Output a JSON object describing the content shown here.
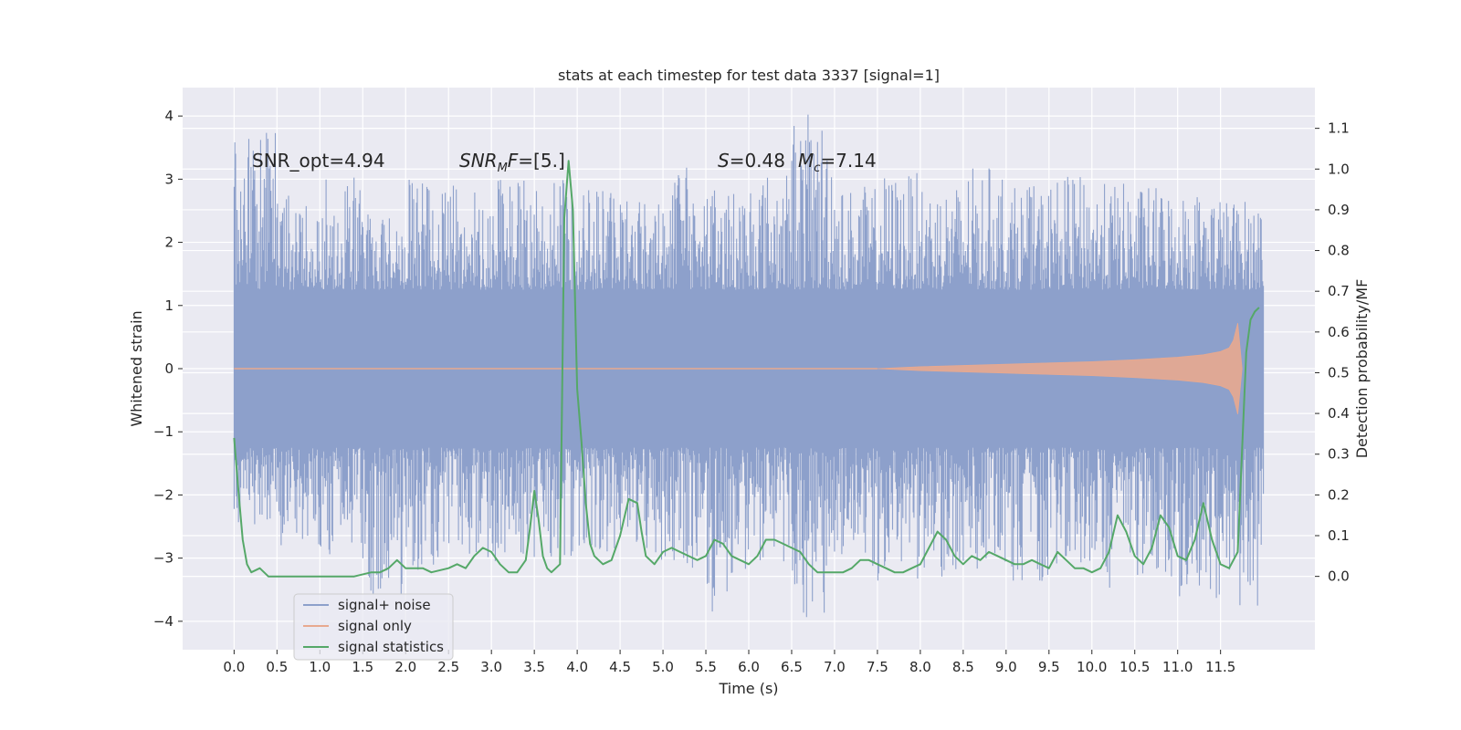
{
  "chart_data": {
    "type": "line",
    "title": "stats at each timestep for test data 3337 [signal=1]",
    "xlabel": "Time (s)",
    "ylabel": "Whitened strain",
    "ylabel_right": "Detection probability/MF",
    "xlim": [
      -0.6,
      12.6
    ],
    "ylim": [
      -4.45,
      4.45
    ],
    "ylim_right": [
      -0.18,
      1.2
    ],
    "x_ticks": [
      0.0,
      0.5,
      1.0,
      1.5,
      2.0,
      2.5,
      3.0,
      3.5,
      4.0,
      4.5,
      5.0,
      5.5,
      6.0,
      6.5,
      7.0,
      7.5,
      8.0,
      8.5,
      9.0,
      9.5,
      10.0,
      10.5,
      11.0,
      11.5
    ],
    "x_tick_labels": [
      "0.0",
      "0.5",
      "1.0",
      "1.5",
      "2.0",
      "2.5",
      "3.0",
      "3.5",
      "4.0",
      "4.5",
      "5.0",
      "5.5",
      "6.0",
      "6.5",
      "7.0",
      "7.5",
      "8.0",
      "8.5",
      "9.0",
      "9.5",
      "10.0",
      "10.5",
      "11.0",
      "11.5"
    ],
    "y_ticks": [
      4,
      3,
      2,
      1,
      0,
      -1,
      -2,
      -3,
      -4
    ],
    "y_tick_labels": [
      "4",
      "3",
      "2",
      "1",
      "0",
      "−1",
      "−2",
      "−3",
      "−4"
    ],
    "y_right_ticks": [
      1.1,
      1.0,
      0.9,
      0.8,
      0.7,
      0.6,
      0.5,
      0.4,
      0.3,
      0.2,
      0.1,
      0.0
    ],
    "y_right_tick_labels": [
      "1.1",
      "1.0",
      "0.9",
      "0.8",
      "0.7",
      "0.6",
      "0.5",
      "0.4",
      "0.3",
      "0.2",
      "0.1",
      "0.0"
    ],
    "grid": true,
    "legend_position": "lower-left",
    "series": [
      {
        "name": "signal+ noise",
        "color": "#8da0cb",
        "axis": "left",
        "t_range": [
          0.0,
          12.0
        ],
        "core_band": [
          -1.25,
          1.25
        ],
        "peaks_max": [
          3.75,
          2.8,
          3.1,
          2.5,
          3.0,
          2.9,
          3.05,
          3.0,
          2.95,
          2.8,
          3.2,
          2.9,
          3.15,
          4.05,
          2.9,
          3.1,
          2.95,
          3.2,
          2.9,
          3.05,
          2.95,
          2.9,
          2.85,
          2.7
        ],
        "peaks_min": [
          -2.5,
          -2.8,
          -2.95,
          -3.6,
          -3.25,
          -3.0,
          -3.1,
          -3.0,
          -2.9,
          -3.05,
          -3.4,
          -3.85,
          -3.1,
          -3.95,
          -3.2,
          -3.4,
          -3.3,
          -3.2,
          -3.4,
          -3.1,
          -3.5,
          -3.3,
          -3.75,
          -3.8
        ]
      },
      {
        "name": "signal only",
        "color": "#e8a98f",
        "axis": "left",
        "x": [
          7.5,
          8.0,
          8.5,
          9.0,
          9.5,
          10.0,
          10.5,
          11.0,
          11.3,
          11.5,
          11.6,
          11.65,
          11.7,
          11.75
        ],
        "envelope": [
          0.0,
          0.03,
          0.05,
          0.07,
          0.09,
          0.11,
          0.14,
          0.18,
          0.22,
          0.27,
          0.33,
          0.45,
          0.72,
          0.0
        ]
      },
      {
        "name": "signal statistics",
        "color": "#55a868",
        "axis": "right",
        "x": [
          0.0,
          0.05,
          0.1,
          0.15,
          0.2,
          0.3,
          0.4,
          0.5,
          0.7,
          1.0,
          1.2,
          1.4,
          1.6,
          1.7,
          1.8,
          1.9,
          2.0,
          2.2,
          2.3,
          2.5,
          2.6,
          2.7,
          2.8,
          2.9,
          3.0,
          3.1,
          3.2,
          3.3,
          3.4,
          3.45,
          3.5,
          3.55,
          3.6,
          3.65,
          3.7,
          3.8,
          3.85,
          3.9,
          3.95,
          4.0,
          4.05,
          4.1,
          4.15,
          4.2,
          4.3,
          4.4,
          4.5,
          4.6,
          4.7,
          4.75,
          4.8,
          4.9,
          5.0,
          5.1,
          5.2,
          5.4,
          5.5,
          5.6,
          5.7,
          5.8,
          5.9,
          6.0,
          6.1,
          6.2,
          6.3,
          6.4,
          6.5,
          6.6,
          6.7,
          6.8,
          7.0,
          7.1,
          7.2,
          7.3,
          7.4,
          7.5,
          7.6,
          7.7,
          7.8,
          7.9,
          8.0,
          8.1,
          8.2,
          8.3,
          8.4,
          8.5,
          8.6,
          8.7,
          8.8,
          8.9,
          9.0,
          9.1,
          9.2,
          9.3,
          9.4,
          9.5,
          9.6,
          9.7,
          9.8,
          9.9,
          10.0,
          10.1,
          10.2,
          10.3,
          10.4,
          10.5,
          10.6,
          10.7,
          10.8,
          10.9,
          11.0,
          11.1,
          11.2,
          11.3,
          11.4,
          11.5,
          11.6,
          11.7,
          11.8,
          11.85,
          11.9,
          11.95
        ],
        "y": [
          0.34,
          0.21,
          0.09,
          0.03,
          0.01,
          0.02,
          0.0,
          0.0,
          0.0,
          0.0,
          0.0,
          0.0,
          0.01,
          0.01,
          0.02,
          0.04,
          0.02,
          0.02,
          0.01,
          0.02,
          0.03,
          0.02,
          0.05,
          0.07,
          0.06,
          0.03,
          0.01,
          0.01,
          0.04,
          0.12,
          0.21,
          0.14,
          0.05,
          0.02,
          0.01,
          0.03,
          0.88,
          1.02,
          0.9,
          0.46,
          0.33,
          0.18,
          0.08,
          0.05,
          0.03,
          0.04,
          0.1,
          0.19,
          0.18,
          0.11,
          0.05,
          0.03,
          0.06,
          0.07,
          0.06,
          0.04,
          0.05,
          0.09,
          0.08,
          0.05,
          0.04,
          0.03,
          0.05,
          0.09,
          0.09,
          0.08,
          0.07,
          0.06,
          0.03,
          0.01,
          0.01,
          0.01,
          0.02,
          0.04,
          0.04,
          0.03,
          0.02,
          0.01,
          0.01,
          0.02,
          0.03,
          0.07,
          0.11,
          0.09,
          0.05,
          0.03,
          0.05,
          0.04,
          0.06,
          0.05,
          0.04,
          0.03,
          0.03,
          0.04,
          0.03,
          0.02,
          0.06,
          0.04,
          0.02,
          0.02,
          0.01,
          0.02,
          0.06,
          0.15,
          0.11,
          0.05,
          0.03,
          0.07,
          0.15,
          0.12,
          0.05,
          0.04,
          0.09,
          0.18,
          0.09,
          0.03,
          0.02,
          0.06,
          0.55,
          0.63,
          0.65,
          0.66
        ]
      }
    ],
    "annotations": [
      {
        "id": "snr-opt",
        "text": "SNR_opt=4.94",
        "x": 0.2,
        "y": 3.2
      },
      {
        "id": "snr-mf",
        "text_main": "SNR",
        "text_sub": "M",
        "text_rest": "F=[5.]",
        "x": 2.6,
        "y": 3.2
      },
      {
        "id": "s-mc",
        "text_s": "S",
        "text_s_val": "=0.48",
        "text_m": "M",
        "text_m_sub": "c",
        "text_m_val": "=7.14",
        "x": 5.6,
        "y": 3.2
      }
    ]
  }
}
